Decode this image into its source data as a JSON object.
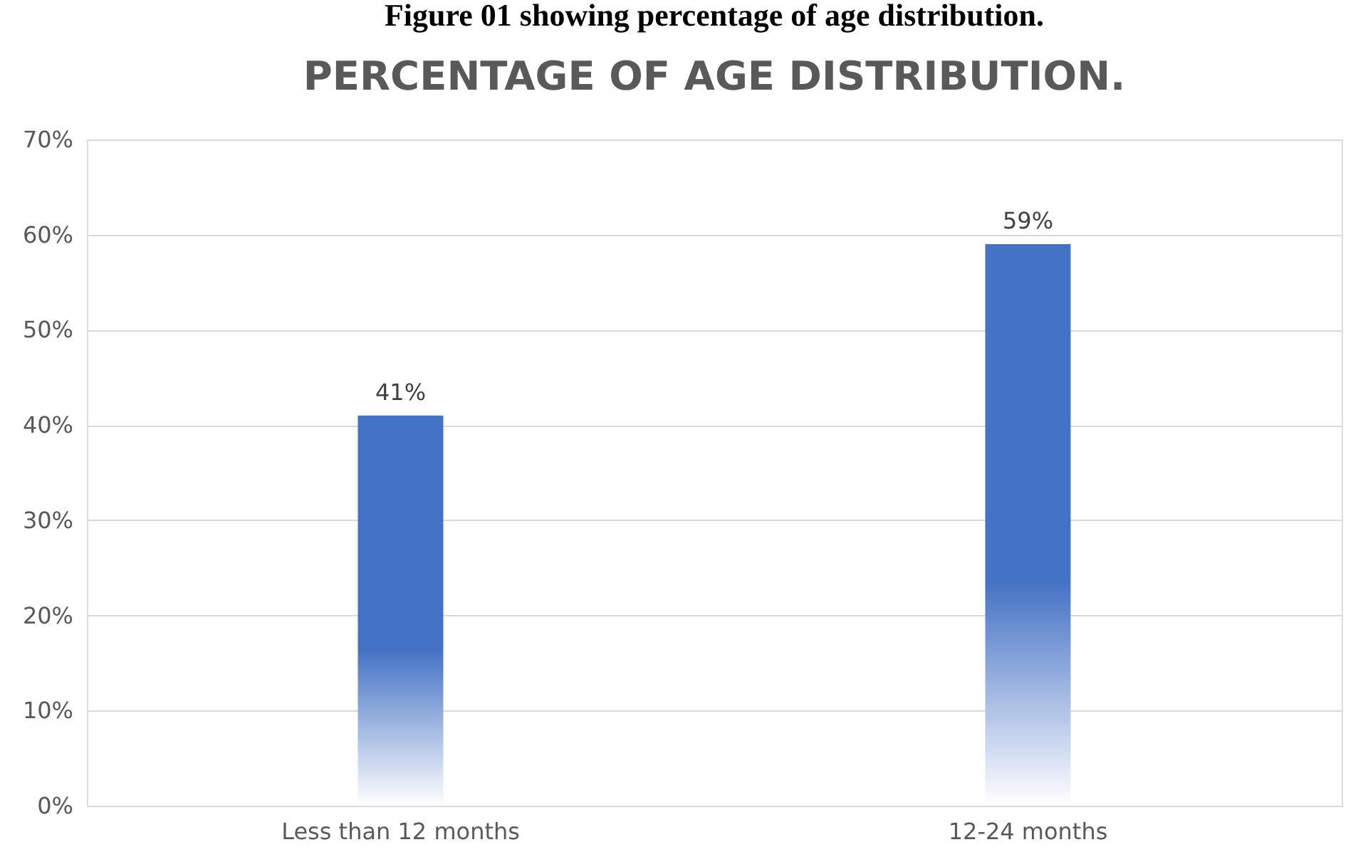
{
  "chart_data": {
    "type": "bar",
    "title": "PERCENTAGE OF AGE DISTRIBUTION.",
    "annotations": [
      "Figure 01 showing percentage of age distribution."
    ],
    "categories": [
      "Less than 12 months",
      "12-24 months"
    ],
    "values": [
      41,
      59
    ],
    "value_labels": [
      "41%",
      "59%"
    ],
    "color": "#4472c4",
    "ylim": [
      0,
      70
    ],
    "yticks": [
      {
        "value": 0,
        "label": "0%"
      },
      {
        "value": 10,
        "label": "10%"
      },
      {
        "value": 20,
        "label": "20%"
      },
      {
        "value": 30,
        "label": "30%"
      },
      {
        "value": 40,
        "label": "40%"
      },
      {
        "value": 50,
        "label": "50%"
      },
      {
        "value": 60,
        "label": "60%"
      },
      {
        "value": 70,
        "label": "70%"
      }
    ],
    "grid": "y"
  }
}
